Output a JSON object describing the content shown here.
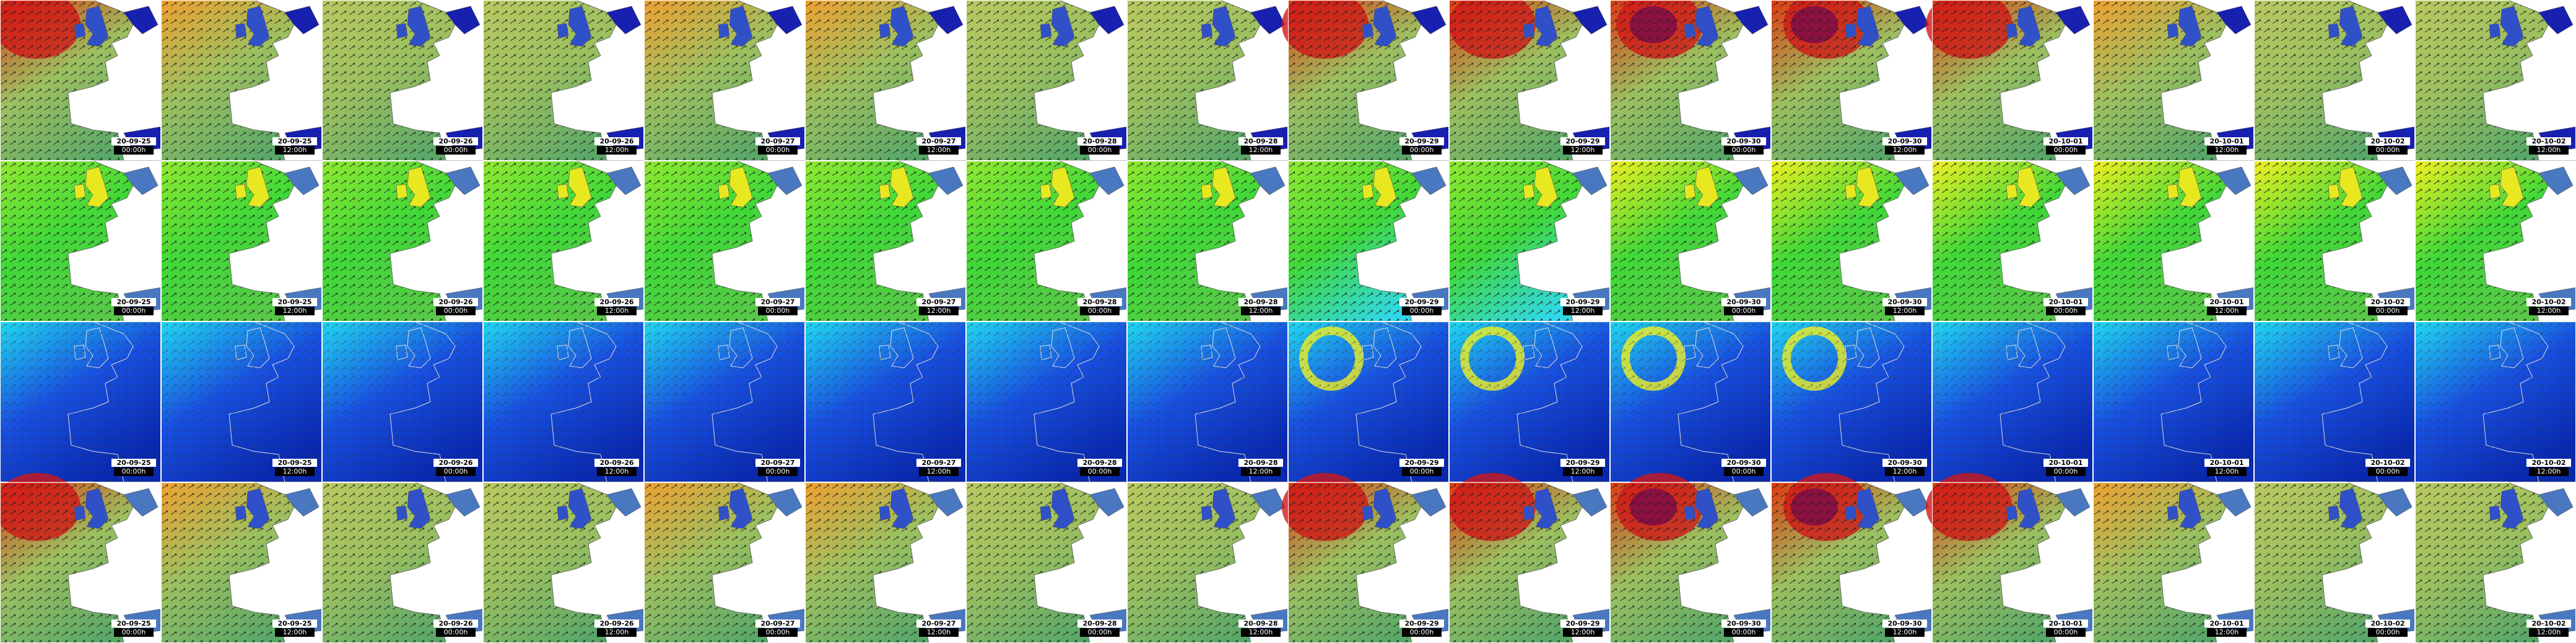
{
  "rows": [
    {
      "dates": [
        "20-09-25",
        "20-09-25",
        "20-09-26",
        "20-09-26",
        "20-09-27",
        "20-09-27",
        "20-09-28",
        "20-09-28",
        "20-09-29",
        "20-09-29",
        "20-09-30",
        "20-09-30",
        "20-10-01",
        "20-10-01",
        "20-10-02",
        "20-10-02"
      ],
      "times": [
        "00:00h",
        "12:00h",
        "00:00h",
        "12:00h",
        "00:00h",
        "12:00h",
        "00:00h",
        "12:00h",
        "00:00h",
        "12:00h",
        "00:00h",
        "12:00h",
        "00:00h",
        "12:00h",
        "00:00h",
        "12:00h"
      ]
    },
    {
      "dates": [
        "20-09-25",
        "20-09-25",
        "20-09-26",
        "20-09-26",
        "20-09-27",
        "20-09-27",
        "20-09-28",
        "20-09-28",
        "20-09-29",
        "20-09-29",
        "20-09-30",
        "20-09-30",
        "20-10-01",
        "20-10-01",
        "20-10-02",
        "20-10-02"
      ],
      "times": [
        "00:00h",
        "12:00h",
        "00:00h",
        "12:00h",
        "00:00h",
        "12:00h",
        "00:00h",
        "12:00h",
        "00:00h",
        "12:00h",
        "00:00h",
        "12:00h",
        "00:00h",
        "12:00h",
        "00:00h",
        "12:00h"
      ]
    },
    {
      "dates": [
        "20-09-25",
        "20-09-25",
        "20-09-26",
        "20-09-26",
        "20-09-27",
        "20-09-27",
        "20-09-28",
        "20-09-28",
        "20-09-29",
        "20-09-29",
        "20-09-30",
        "20-09-30",
        "20-10-01",
        "20-10-01",
        "20-10-02",
        "20-10-02"
      ],
      "times": [
        "00:00h",
        "12:00h",
        "00:00h",
        "12:00h",
        "00:00h",
        "12:00h",
        "00:00h",
        "12:00h",
        "00:00h",
        "12:00h",
        "00:00h",
        "12:00h",
        "00:00h",
        "12:00h",
        "00:00h",
        "12:00h"
      ]
    },
    {
      "dates": [
        "20-09-25",
        "20-09-25",
        "20-09-26",
        "20-09-26",
        "20-09-27",
        "20-09-27",
        "20-09-28",
        "20-09-28",
        "20-09-29",
        "20-09-29",
        "20-09-30",
        "20-09-30",
        "20-10-01",
        "20-10-01",
        "20-10-02",
        "20-10-02"
      ],
      "times": [
        "00:00h",
        "12:00h",
        "00:00h",
        "12:00h",
        "00:00h",
        "12:00h",
        "00:00h",
        "12:00h",
        "00:00h",
        "12:00h",
        "00:00h",
        "12:00h",
        "00:00h",
        "12:00h",
        "00:00h",
        "12:00h"
      ]
    }
  ]
}
